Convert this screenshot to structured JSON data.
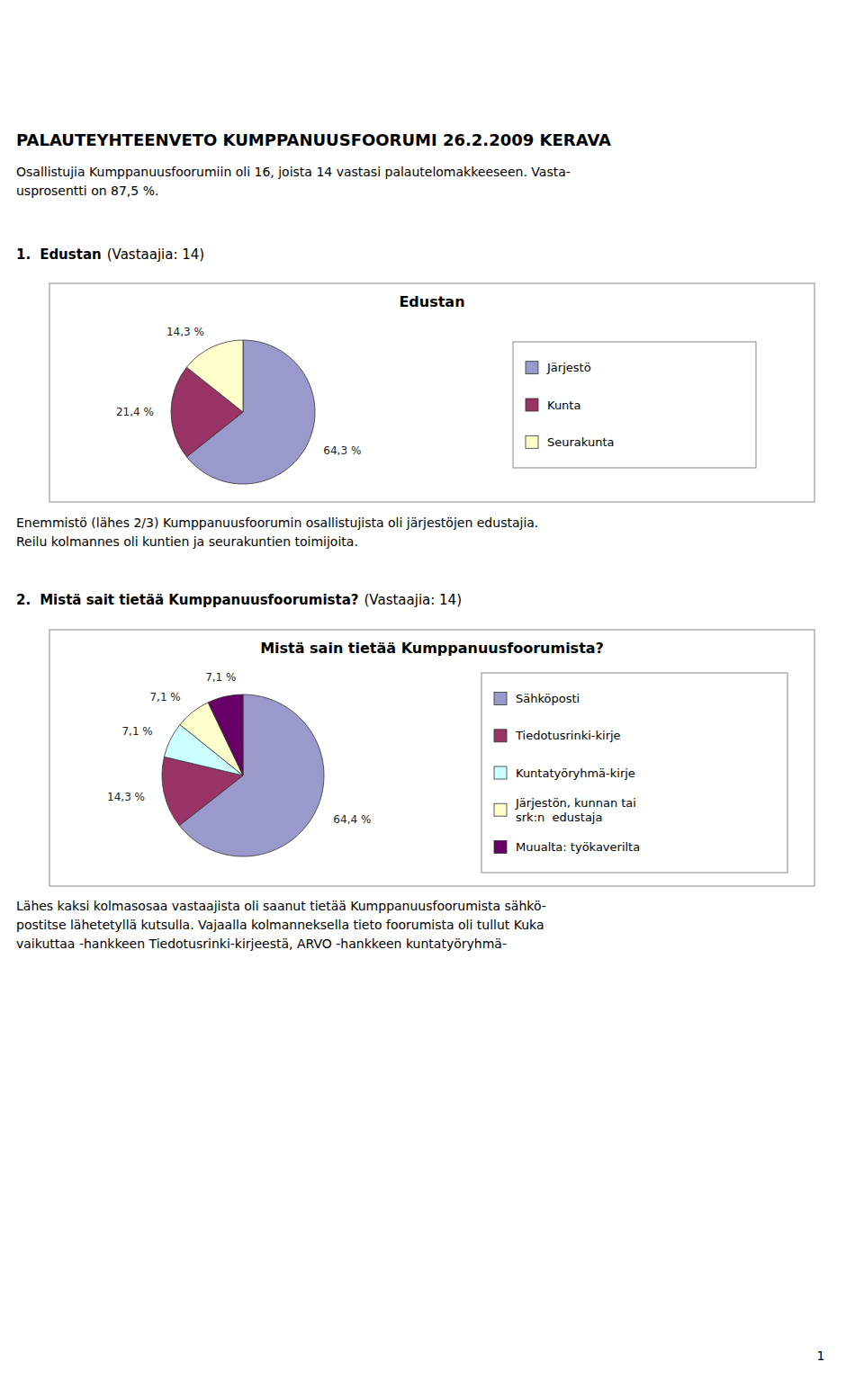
{
  "title": "PALAUTEYHTEENVETO KUMPPANUUSFOORUMI 26.2.2009 KERAVA",
  "intro": [
    "Osallistujia Kumppanuusfoorumiin oli 16, joista 14 vastasi palautelomakkeeseen. Vasta-",
    "usprosentti on 87,5 %."
  ],
  "between": [
    "Enemmistö (lähes 2/3) Kumppanuusfoorumin osallistujista oli järjestöjen edustajia.",
    "Reilu kolmannes oli kuntien ja seurakuntien toimijoita."
  ],
  "bottom": [
    "Lähes kaksi kolmasosaa vastaajista oli saanut tietää Kumppanuusfoorumista sähkö-",
    "postitse lähetetyllä kutsulla. Vajaalla kolmanneksella tieto foorumista oli tullut Kuka",
    "vaikuttaa -hankkeen Tiedotusrinki-kirjeestä, ARVO -hankkeen kuntatyöryhmä-"
  ],
  "page_number": "1",
  "chart_data": [
    {
      "type": "pie",
      "section_number": "1.",
      "section_title": "Edustan",
      "section_note": "(Vastaajia: 14)",
      "title": "Edustan",
      "categories": [
        "Järjestö",
        "Kunta",
        "Seurakunta"
      ],
      "values": [
        64.3,
        21.4,
        14.3
      ],
      "value_labels": [
        "64,3 %",
        "21,4 %",
        "14,3 %"
      ],
      "colors": [
        "#9999cc",
        "#993366",
        "#ffffcc"
      ],
      "data_labels": true,
      "legend": "right"
    },
    {
      "type": "pie",
      "section_number": "2.",
      "section_title": "Mistä sait tietää Kumppanuusfoorumista?",
      "section_note": "(Vastaajia: 14)",
      "title": "Mistä sain tietää Kumppanuusfoorumista?",
      "categories": [
        "Sähköposti",
        "Tiedotusrinki-kirje",
        "Kuntatyöryhmä-kirje",
        "Järjestön, kunnan tai\nsrk:n  edustaja",
        "Muualta: työkaverilta"
      ],
      "values": [
        64.4,
        14.3,
        7.1,
        7.1,
        7.1
      ],
      "value_labels": [
        "64,4 %",
        "14,3 %",
        "7,1 %",
        "7,1 %",
        "7,1 %"
      ],
      "colors": [
        "#9999cc",
        "#993366",
        "#ccffff",
        "#ffffcc",
        "#660066"
      ],
      "data_labels": true,
      "legend": "right"
    }
  ]
}
